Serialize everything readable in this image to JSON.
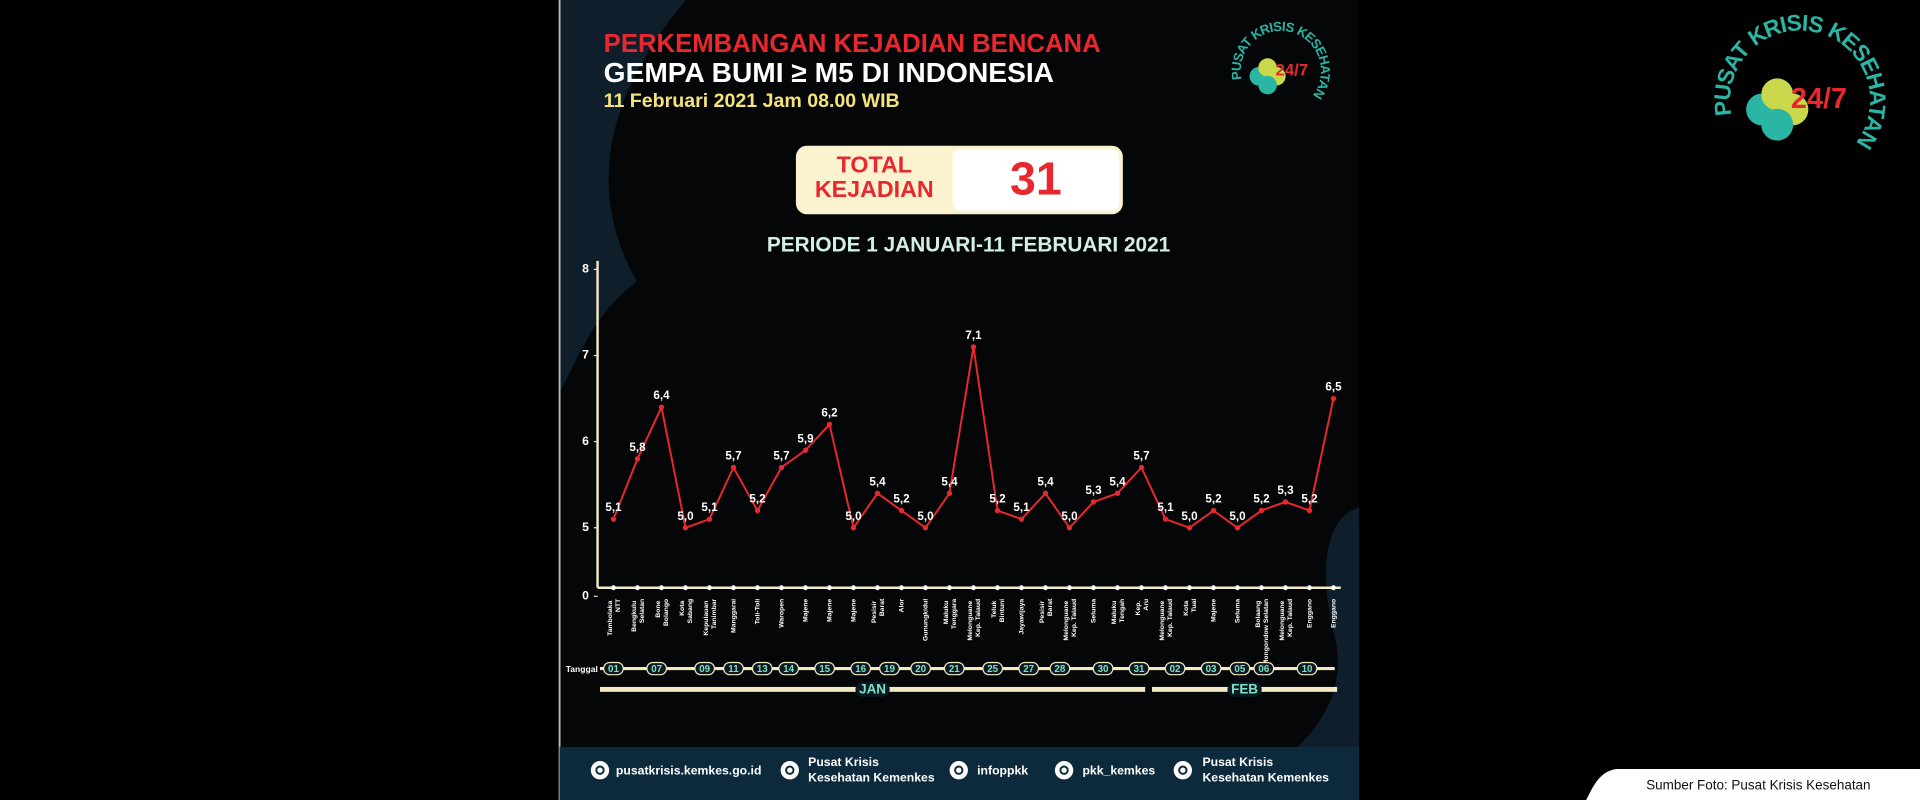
{
  "header": {
    "title": "PERKEMBANGAN KEJADIAN BENCANA",
    "subtitle": "GEMPA BUMI ≥ M5 DI INDONESIA",
    "date": "11 Februari 2021 Jam 08.00 WIB"
  },
  "total": {
    "label_lines": [
      "TOTAL",
      "KEJADIAN"
    ],
    "value": 31
  },
  "logo": {
    "name": "PUSAT KRISIS KESEHATAN",
    "hours": "24/7"
  },
  "chart_data": {
    "type": "line",
    "title": "PERIODE 1 JANUARI-11 FEBRUARI 2021",
    "categories": [
      "Tambolaka NTT",
      "Bengkulu Selatan",
      "Bone Bolango",
      "Kota Sabang",
      "Kepulauan Tanimbar",
      "Manggarai",
      "Toli-Toli",
      "Waropen",
      "Majene",
      "Majene",
      "Majene",
      "Pesisir Barat",
      "Alor",
      "Gunungkidul",
      "Maluku Tenggara",
      "Melonguane Kep. Talaud",
      "Teluk Bintuni",
      "Jayawijaya",
      "Pesisir Barat",
      "Melonguane Kep. Talaud",
      "Seluma",
      "Maluku Tengah",
      "Kep. Aru",
      "Melonguane Kep. Talaud",
      "Kota Tual",
      "Majene",
      "Seluma",
      "Bolaang Mongondow Selatan",
      "Melonguane Kep. Talaud",
      "Enggano",
      "Enggano"
    ],
    "values": [
      5.1,
      5.8,
      6.4,
      5.0,
      5.1,
      5.7,
      5.2,
      5.7,
      5.9,
      6.2,
      5.0,
      5.4,
      5.2,
      5.0,
      5.4,
      7.1,
      5.2,
      5.1,
      5.4,
      5.0,
      5.3,
      5.4,
      5.7,
      5.1,
      5.0,
      5.2,
      5.0,
      5.2,
      5.3,
      5.2,
      6.5
    ],
    "value_labels": [
      "5,1",
      "5,8",
      "6,4",
      "5,0",
      "5,1",
      "5,7",
      "5,2",
      "5,7",
      "5,9",
      "6,2",
      "5,0",
      "5,4",
      "5,2",
      "5,0",
      "5,4",
      "7,1",
      "5,2",
      "5,1",
      "5,4",
      "5,0",
      "5,3",
      "5,4",
      "5,7",
      "5,1",
      "5,0",
      "5,2",
      "5,0",
      "5,2",
      "5,3",
      "5,2",
      "6,5"
    ],
    "color": "#e8282e",
    "ylim": [
      0,
      8
    ],
    "yticks": [
      0,
      5,
      6,
      7,
      8
    ],
    "broken_axis": true,
    "date_label": "Tanggal",
    "dates": [
      "01",
      "07",
      "09",
      "11",
      "13",
      "14",
      "15",
      "16",
      "19",
      "20",
      "21",
      "25",
      "27",
      "28",
      "30",
      "31",
      "02",
      "03",
      "05",
      "06",
      "10"
    ],
    "months": [
      "JAN",
      "FEB"
    ]
  },
  "footer": [
    [
      "pusatkrisis.kemkes.go.id"
    ],
    [
      "Pusat Krisis",
      "Kesehatan Kemenkes"
    ],
    [
      "infoppkk"
    ],
    [
      "pkk_kemkes"
    ],
    [
      "Pusat Krisis",
      "Kesehatan Kemenkes"
    ]
  ],
  "caption": "Sumber Foto: Pusat Krisis Kesehatan"
}
